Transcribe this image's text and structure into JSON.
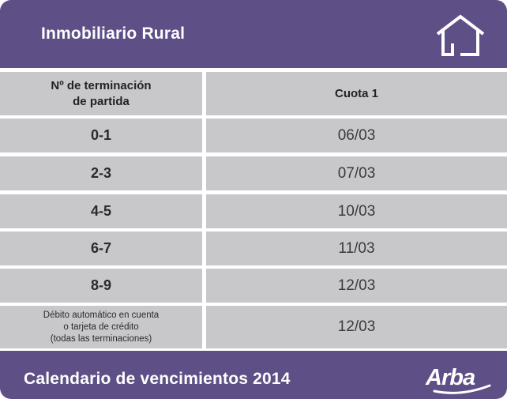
{
  "header": {
    "title": "Inmobiliario Rural",
    "icon": "house-icon"
  },
  "table": {
    "columns": [
      "Nº de terminación\nde partida",
      "Cuota 1"
    ],
    "rows": [
      {
        "terminacion": "0-1",
        "cuota1": "06/03"
      },
      {
        "terminacion": "2-3",
        "cuota1": "07/03"
      },
      {
        "terminacion": "4-5",
        "cuota1": "10/03"
      },
      {
        "terminacion": "6-7",
        "cuota1": "11/03"
      },
      {
        "terminacion": "8-9",
        "cuota1": "12/03"
      },
      {
        "terminacion": "Débito automático en cuenta\no tarjeta de crédito\n(todas las terminaciones)",
        "cuota1": "12/03"
      }
    ]
  },
  "footer": {
    "title": "Calendario de vencimientos 2014",
    "logo_text": "Arba"
  },
  "colors": {
    "brand": "#5e4f86",
    "cell": "#c8c8cb",
    "text_light": "#ffffff"
  }
}
